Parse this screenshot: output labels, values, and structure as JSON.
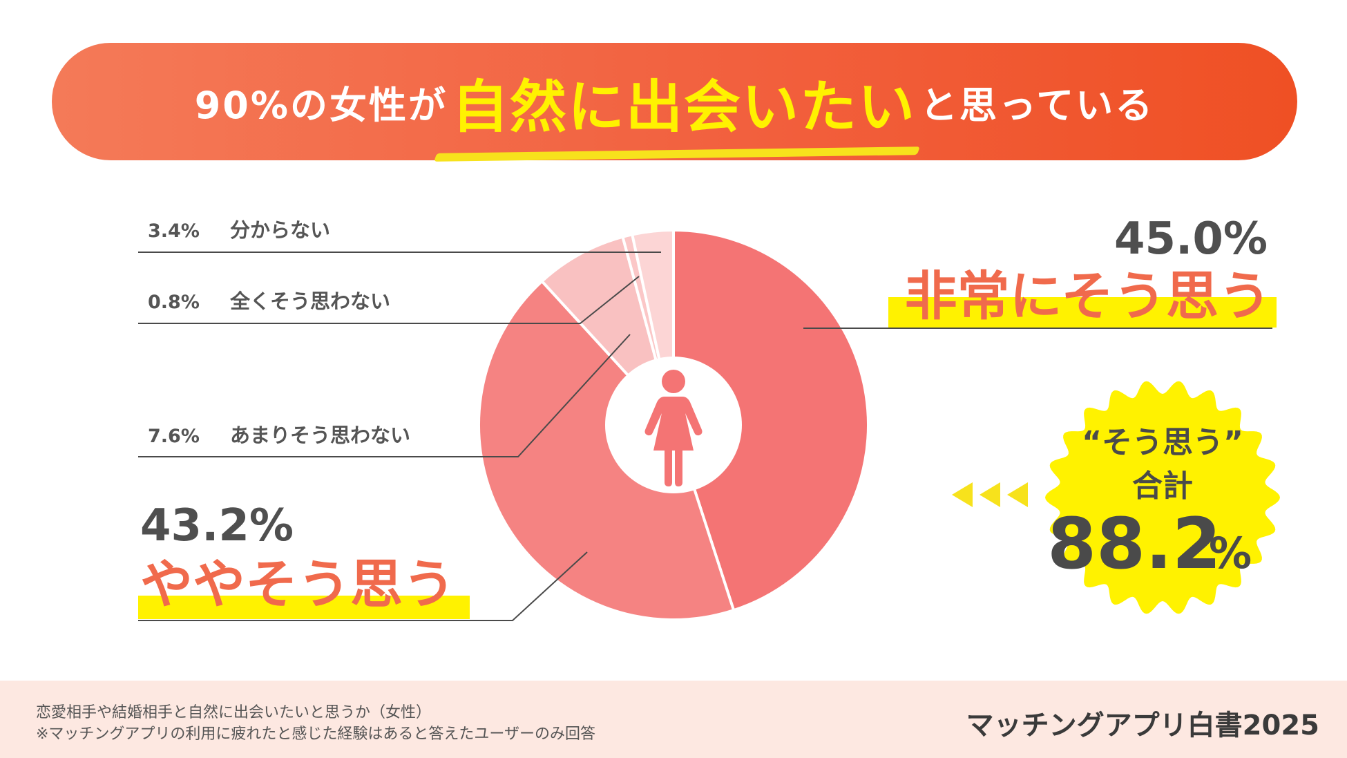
{
  "title": {
    "part1": "90%の女性が",
    "highlight": "自然に出会いたい",
    "part2": "と思っている"
  },
  "chart_data": {
    "type": "pie",
    "title": "",
    "slices": [
      {
        "label": "非常にそう思う",
        "display": "45.0%",
        "value": 45.0,
        "color": "#f47474"
      },
      {
        "label": "ややそう思う",
        "display": "43.2%",
        "value": 43.2,
        "color": "#f58382"
      },
      {
        "label": "あまりそう思わない",
        "display": "7.6%",
        "value": 7.6,
        "color": "#f9c1c1"
      },
      {
        "label": "全くそう思わない",
        "display": "0.8%",
        "value": 0.8,
        "color": "#fbc7c7"
      },
      {
        "label": "分からない",
        "display": "3.4%",
        "value": 3.4,
        "color": "#fcd5d5"
      }
    ],
    "highlight_color": "#fff200",
    "accent_color": "#f06a4c"
  },
  "badge": {
    "label1": "“そう思う”",
    "label2": "合計",
    "number": "88.2",
    "percent": "%"
  },
  "footer": {
    "note1": "恋愛相手や結婚相手と自然に出会いたいと思うか（女性）",
    "note2": "※マッチングアプリの利用に疲れたと感じた経験はあると答えたユーザーのみ回答",
    "brand": "マッチングアプリ白書2025"
  },
  "icons": {
    "center": "woman-icon",
    "arrows": "triangle-left-icon"
  }
}
